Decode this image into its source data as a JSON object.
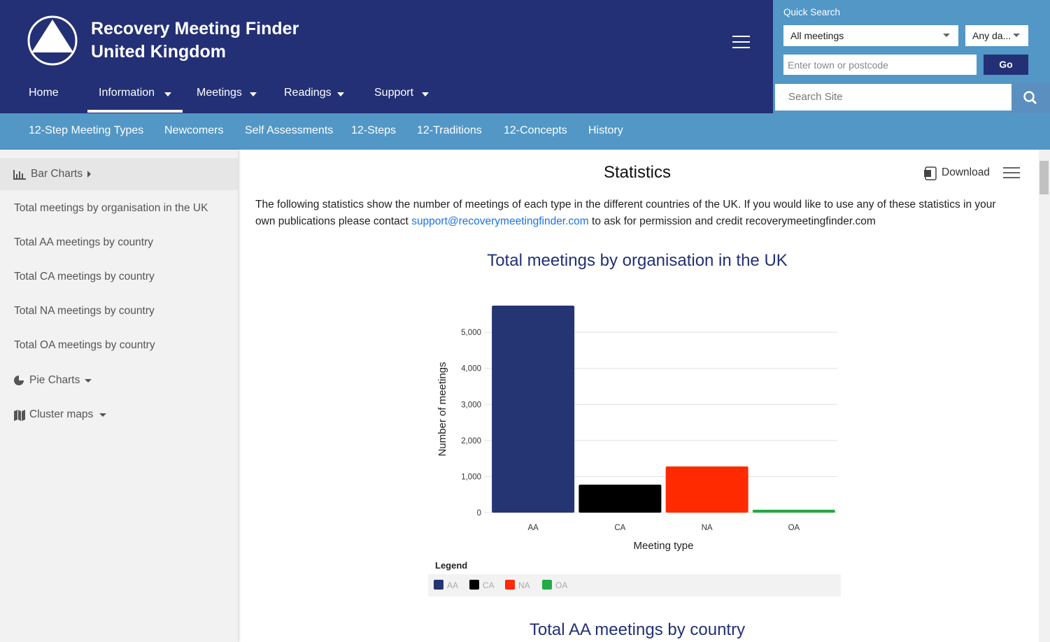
{
  "header": {
    "title_line1": "Recovery Meeting Finder",
    "title_line2": "United Kingdom"
  },
  "nav": [
    "Home",
    "Information",
    "Meetings",
    "Readings",
    "Support"
  ],
  "quick_search": {
    "label": "Quick Search",
    "meeting_select": "All meetings",
    "day_select": "Any da...",
    "location_placeholder": "Enter town or postcode",
    "go": "Go"
  },
  "site_search_placeholder": "Search Site",
  "subnav": [
    "12-Step Meeting Types",
    "Newcomers",
    "Self Assessments",
    "12-Steps",
    "12-Traditions",
    "12-Concepts",
    "History"
  ],
  "sidebar": {
    "bar_charts": "Bar Charts",
    "items": [
      "Total meetings by organisation in the UK",
      "Total AA meetings by country",
      "Total CA meetings by country",
      "Total NA meetings by country",
      "Total OA meetings by country"
    ],
    "pie_charts": "Pie Charts",
    "cluster_maps": "Cluster maps"
  },
  "content": {
    "title": "Statistics",
    "download": "Download",
    "intro_before": "The following statistics show the number of meetings of each type in the different countries of the UK. If you would like to use any of these statistics in your own publications please contact",
    "email": "support@recoverymeetingfinder.com",
    "intro_after": "to ask for permission and credit recoverymeetingfinder.com",
    "next_heading": "Total AA meetings by country"
  },
  "chart_data": {
    "type": "bar",
    "title": "Total meetings by organisation in the UK",
    "x_label": "Meeting type",
    "y_label": "Number of meetings",
    "categories": [
      "AA",
      "CA",
      "NA",
      "OA"
    ],
    "values": [
      5740,
      775,
      1280,
      80
    ],
    "colors": [
      "#253473",
      "#000000",
      "#ff2a00",
      "#22aa44"
    ],
    "ylim": [
      0,
      5740
    ],
    "yticks": [
      0,
      {
        "value": 1000,
        "label": "1,000"
      },
      {
        "value": 2000,
        "label": "2,000"
      },
      {
        "value": 3000,
        "label": "3,000"
      },
      {
        "value": 4000,
        "label": "4,000"
      },
      {
        "value": 5000,
        "label": "5,000"
      }
    ],
    "grid": true,
    "legend_title": "Legend"
  }
}
